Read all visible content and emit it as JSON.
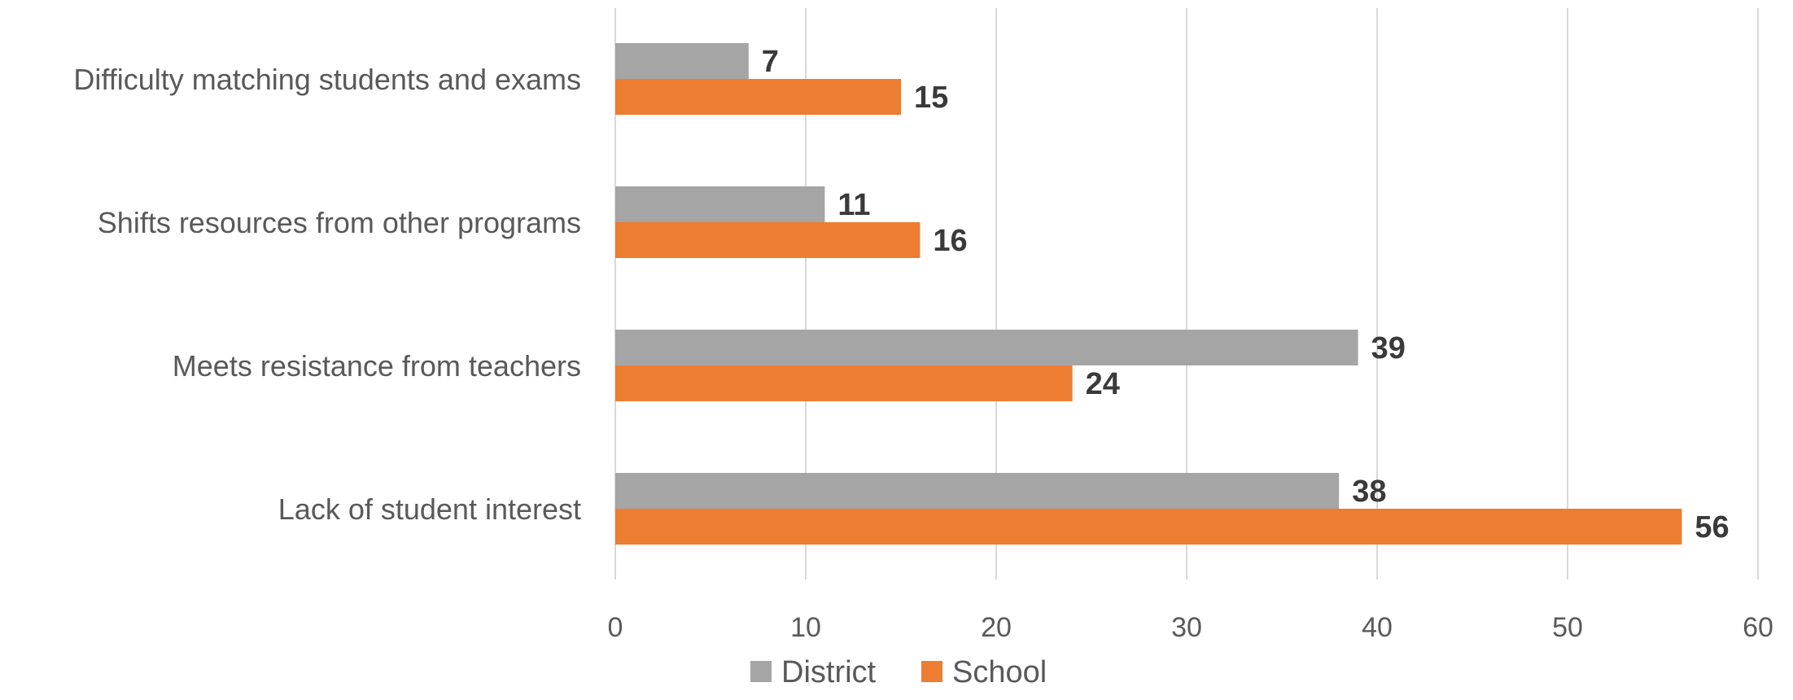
{
  "chart_data": {
    "type": "bar",
    "orientation": "horizontal",
    "categories": [
      "Difficulty matching students and exams",
      "Shifts resources from other programs",
      "Meets resistance from teachers",
      "Lack of student interest"
    ],
    "series": [
      {
        "name": "District",
        "color": "#a5a5a5",
        "values": [
          7,
          11,
          39,
          38
        ]
      },
      {
        "name": "School",
        "color": "#ed7d31",
        "values": [
          15,
          16,
          24,
          56
        ]
      }
    ],
    "xticks": [
      "0",
      "10",
      "20",
      "30",
      "40",
      "50",
      "60"
    ],
    "xlim": [
      0,
      60
    ],
    "grid": true,
    "legend": "bottom",
    "data_labels": true
  }
}
